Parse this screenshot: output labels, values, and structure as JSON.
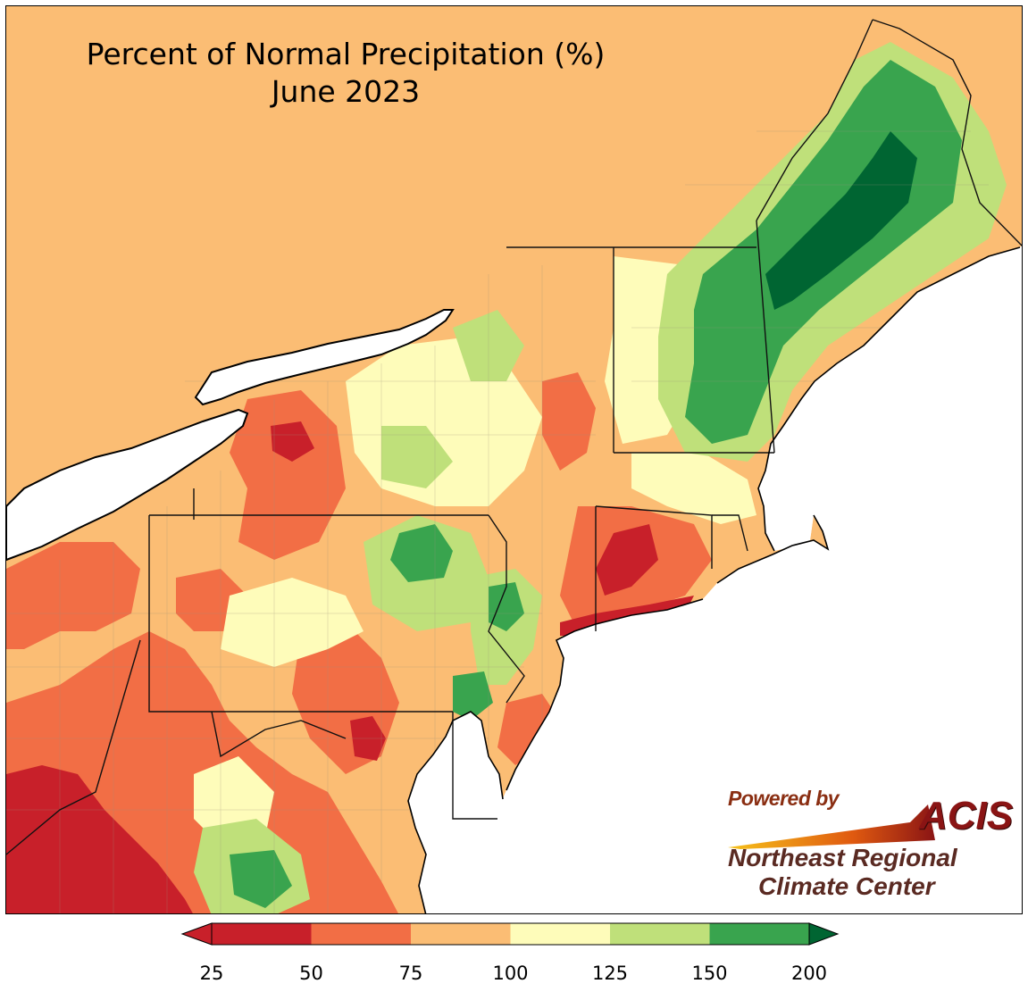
{
  "title": "Percent of Normal Precipitation (%)",
  "subtitle": "June 2023",
  "logo": {
    "powered_by": "Powered by",
    "acis": "ACIS",
    "org_line1": "Northeast Regional",
    "org_line2": "Climate Center"
  },
  "legend": {
    "ticks": [
      "25",
      "50",
      "75",
      "100",
      "125",
      "150",
      "200"
    ],
    "colors": [
      "#c8202a",
      "#f26e45",
      "#fbbd74",
      "#fefcba",
      "#bfe07a",
      "#39a44e",
      "#006532"
    ],
    "under_color": "#c8202a",
    "over_color": "#006532"
  },
  "colors": {
    "lake": "#ffffff",
    "ocean": "#ffffff",
    "border": "#111111"
  }
}
